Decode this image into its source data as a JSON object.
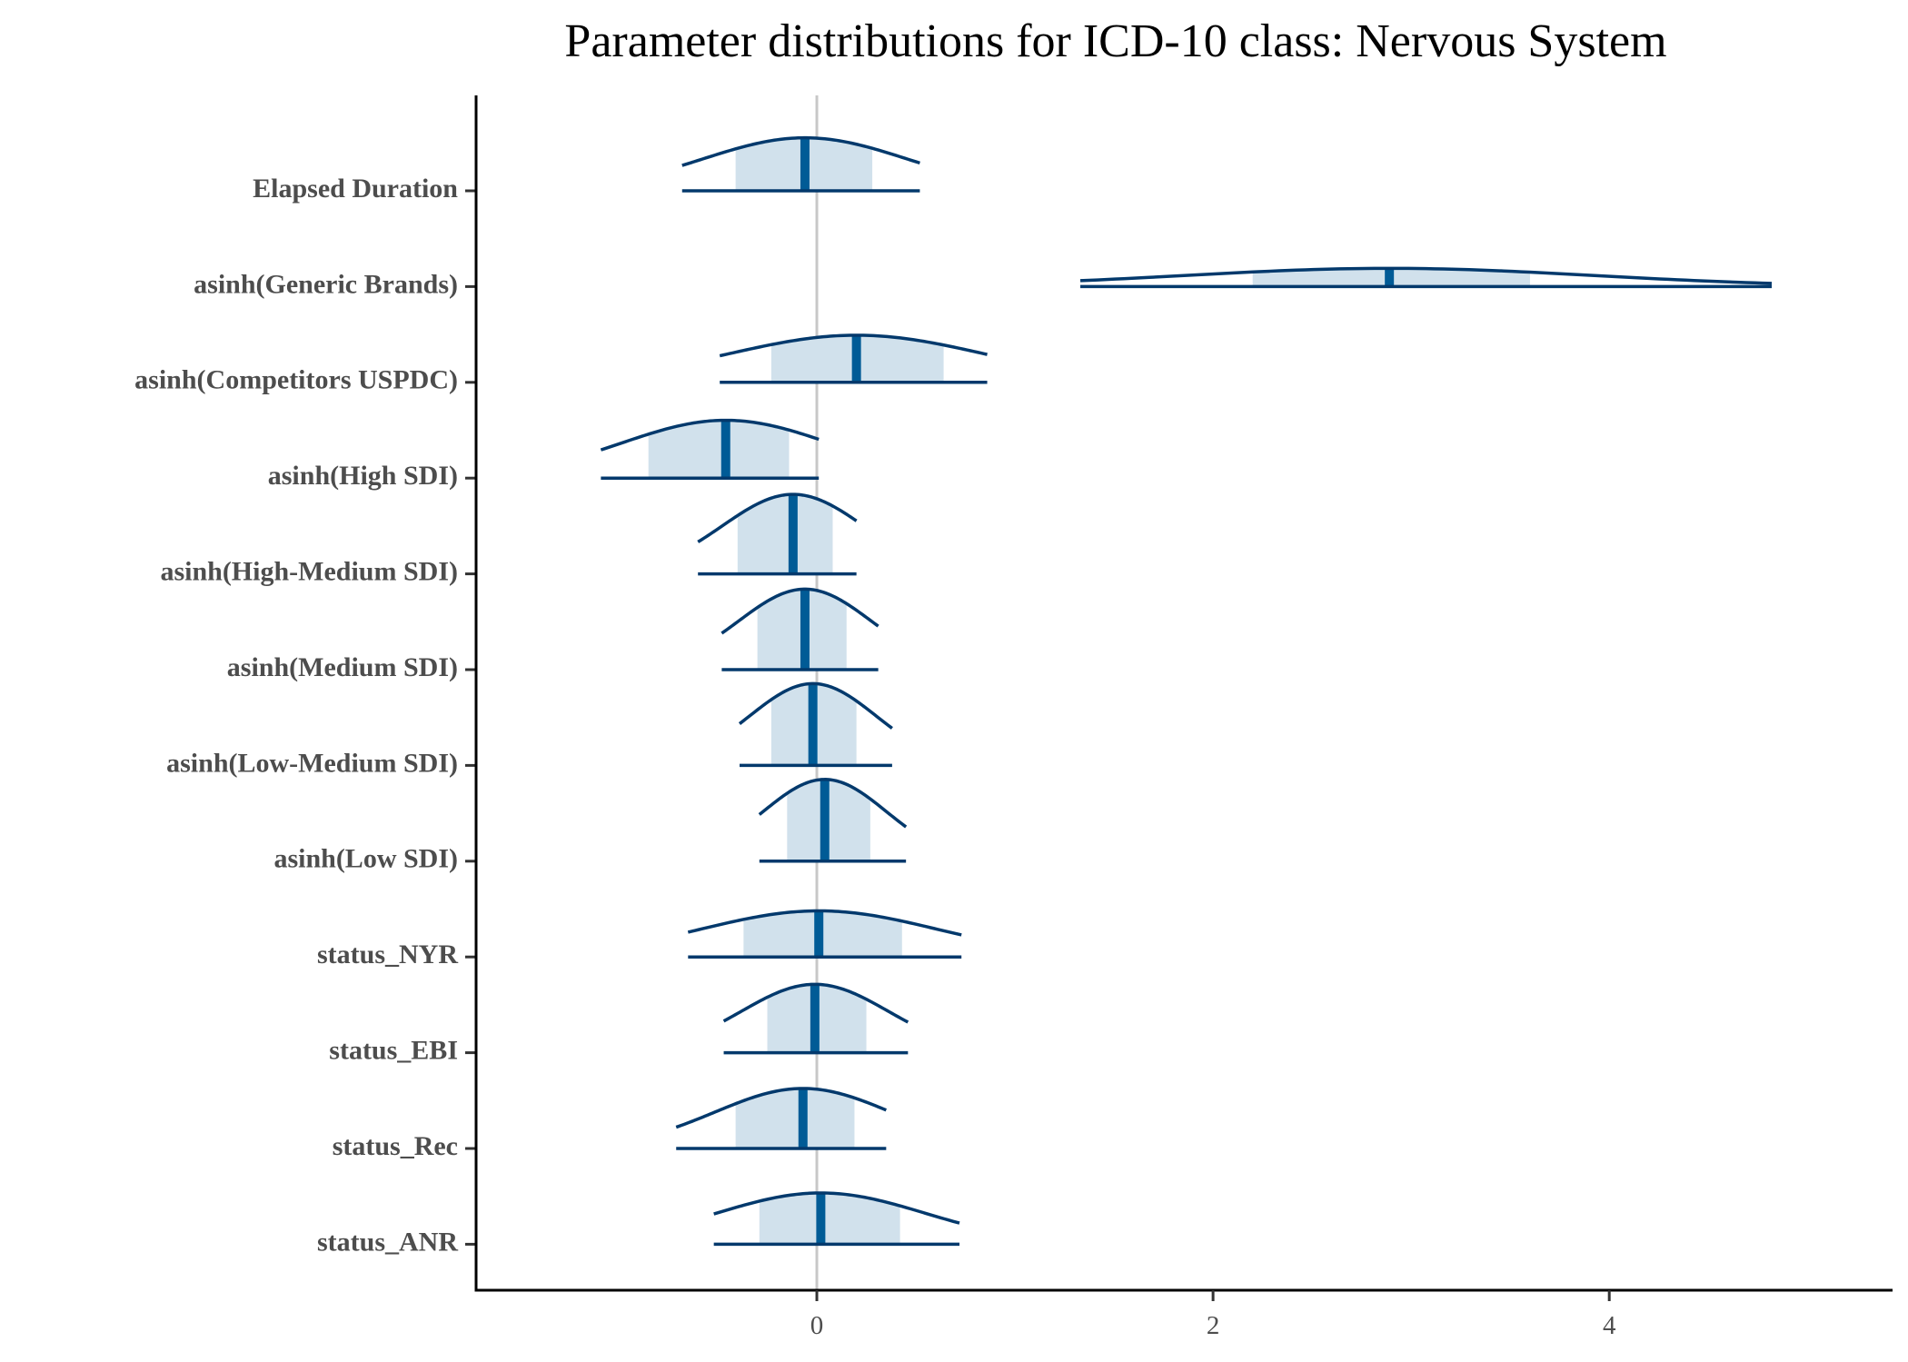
{
  "chart_data": {
    "type": "areas",
    "title": "Parameter distributions for ICD-10 class: Nervous System",
    "xlim": [
      -1.72,
      5.43
    ],
    "xticks": [
      0,
      2,
      4
    ],
    "reference_line": 0,
    "fill_color": "#d1e1ec",
    "line_color": "#03396c",
    "median_color": "#005b96",
    "reference_color": "#c8c8c8",
    "series": [
      {
        "name": "Elapsed Duration",
        "median": -0.06,
        "inner": [
          -0.41,
          0.28
        ],
        "outer": [
          -0.68,
          0.52
        ]
      },
      {
        "name": "asinh(Generic Brands)",
        "median": 2.89,
        "inner": [
          2.2,
          3.6
        ],
        "outer": [
          1.33,
          4.82
        ]
      },
      {
        "name": "asinh(Competitors USPDC)",
        "median": 0.2,
        "inner": [
          -0.23,
          0.64
        ],
        "outer": [
          -0.49,
          0.86
        ]
      },
      {
        "name": "asinh(High SDI)",
        "median": -0.46,
        "inner": [
          -0.85,
          -0.14
        ],
        "outer": [
          -1.09,
          0.01
        ]
      },
      {
        "name": "asinh(High-Medium SDI)",
        "median": -0.12,
        "inner": [
          -0.4,
          0.08
        ],
        "outer": [
          -0.6,
          0.2
        ]
      },
      {
        "name": "asinh(Medium SDI)",
        "median": -0.06,
        "inner": [
          -0.3,
          0.15
        ],
        "outer": [
          -0.48,
          0.31
        ]
      },
      {
        "name": "asinh(Low-Medium SDI)",
        "median": -0.02,
        "inner": [
          -0.23,
          0.2
        ],
        "outer": [
          -0.39,
          0.38
        ]
      },
      {
        "name": "asinh(Low SDI)",
        "median": 0.04,
        "inner": [
          -0.15,
          0.27
        ],
        "outer": [
          -0.29,
          0.45
        ]
      },
      {
        "name": "status_NYR",
        "median": 0.01,
        "inner": [
          -0.37,
          0.43
        ],
        "outer": [
          -0.65,
          0.73
        ]
      },
      {
        "name": "status_EBI",
        "median": -0.01,
        "inner": [
          -0.25,
          0.25
        ],
        "outer": [
          -0.47,
          0.46
        ]
      },
      {
        "name": "status_Rec",
        "median": -0.07,
        "inner": [
          -0.41,
          0.19
        ],
        "outer": [
          -0.71,
          0.35
        ]
      },
      {
        "name": "status_ANR",
        "median": 0.02,
        "inner": [
          -0.29,
          0.42
        ],
        "outer": [
          -0.52,
          0.72
        ]
      }
    ]
  }
}
